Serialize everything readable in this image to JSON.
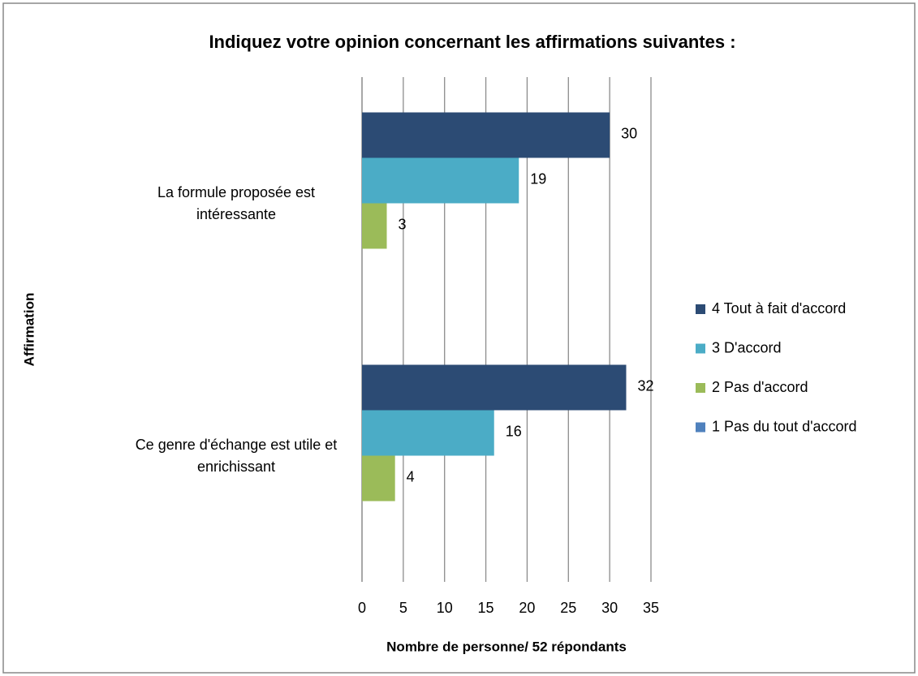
{
  "chart_data": {
    "type": "bar",
    "orientation": "horizontal",
    "title": "Indiquez votre opinion concernant les affirmations suivantes :",
    "x_label": "Nombre de personne/ 52 répondants",
    "y_label": "Affirmation",
    "categories": [
      "La formule proposée est intéressante",
      "Ce genre d'échange est utile et enrichissant"
    ],
    "series": [
      {
        "name": "4 Tout à fait d'accord",
        "color": "#2c4b74",
        "values": [
          30,
          32
        ]
      },
      {
        "name": "3 D'accord",
        "color": "#4bacc6",
        "values": [
          19,
          16
        ]
      },
      {
        "name": "2 Pas d'accord",
        "color": "#9bbb59",
        "values": [
          3,
          4
        ]
      },
      {
        "name": "1 Pas du tout d'accord",
        "color": "#4f81bd",
        "values": [
          null,
          null
        ]
      }
    ],
    "xlim": [
      0,
      35
    ],
    "xticks": [
      0,
      5,
      10,
      15,
      20,
      25,
      30,
      35
    ],
    "grid": true,
    "legend": "right"
  }
}
